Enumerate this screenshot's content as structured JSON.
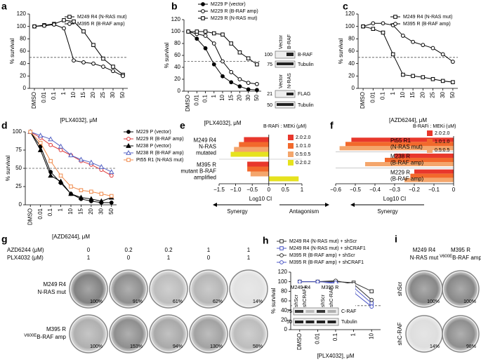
{
  "chart_data": [
    {
      "type": "line",
      "label": "a",
      "categories": [
        "DMSO",
        "0.01",
        "0.1",
        "1",
        "10",
        "15",
        "20",
        "25",
        "30",
        "50"
      ],
      "series": [
        {
          "name": "M249 R4 (N-RAS mut)",
          "color": "#000000",
          "marker": "square",
          "filled": false,
          "values": [
            100,
            102,
            104,
            110,
            108,
            92,
            70,
            48,
            35,
            22
          ]
        },
        {
          "name": "M395 R (B-RAF amp)",
          "color": "#000000",
          "marker": "circle",
          "filled": false,
          "values": [
            100,
            101,
            103,
            97,
            45,
            42,
            40,
            35,
            28,
            20
          ]
        }
      ],
      "ylim": [
        0,
        120
      ],
      "yticks": [
        0,
        20,
        40,
        60,
        80,
        100,
        120
      ],
      "ylabel": "% survival",
      "xlabel": "[PLX4032], μM",
      "reference_line": 50
    },
    {
      "type": "line",
      "label": "b",
      "categories": [
        "DMSO",
        "0.01",
        "0.1",
        "1",
        "10",
        "15",
        "20",
        "30",
        "50"
      ],
      "series": [
        {
          "name": "M229 P (vector)",
          "color": "#000000",
          "marker": "circle",
          "filled": true,
          "values": [
            100,
            88,
            72,
            45,
            25,
            15,
            8,
            3,
            2
          ]
        },
        {
          "name": "M229 R (B-RAF amp)",
          "color": "#000000",
          "marker": "circle",
          "filled": false,
          "values": [
            100,
            96,
            93,
            80,
            50,
            32,
            20,
            14,
            12
          ]
        },
        {
          "name": "M229 R (N-RAS mut)",
          "color": "#000000",
          "marker": "square",
          "filled": false,
          "values": [
            100,
            100,
            100,
            97,
            95,
            80,
            65,
            55,
            45
          ]
        }
      ],
      "ylim": [
        0,
        120
      ],
      "yticks": [
        0,
        20,
        40,
        60,
        80,
        100,
        120
      ],
      "ylabel": "% survival",
      "xlabel": "[PLX4032], μM",
      "reference_line": 50,
      "blots": [
        {
          "lanes": [
            "Vector",
            "B-RAF"
          ],
          "ladder": [
            100,
            75
          ],
          "bands": [
            "B-RAF",
            "Tubulin"
          ]
        },
        {
          "lanes": [
            "Vector",
            "N-RAS"
          ],
          "ladder": [
            21,
            50
          ],
          "bands": [
            "FLAG",
            "Tubulin"
          ]
        }
      ]
    },
    {
      "type": "line",
      "label": "c",
      "categories": [
        "DMSO",
        "0.01",
        "0.1",
        "1",
        "10",
        "15",
        "20",
        "25",
        "30",
        "50"
      ],
      "series": [
        {
          "name": "M249 R4 (N-RAS mut)",
          "color": "#000000",
          "marker": "square",
          "filled": false,
          "values": [
            100,
            96,
            90,
            55,
            22,
            20,
            18,
            15,
            12,
            10
          ]
        },
        {
          "name": "M395 R (B-RAF amp)",
          "color": "#000000",
          "marker": "circle",
          "filled": false,
          "values": [
            100,
            105,
            105,
            102,
            85,
            75,
            70,
            65,
            55,
            43
          ]
        }
      ],
      "ylim": [
        0,
        120
      ],
      "yticks": [
        0,
        20,
        40,
        60,
        80,
        100,
        120
      ],
      "ylabel": "% survival",
      "xlabel": "[AZD6244], μM",
      "reference_line": 50
    },
    {
      "type": "line",
      "label": "d",
      "categories": [
        "DMSO",
        "0.01",
        "0.1",
        "1",
        "10",
        "15",
        "20",
        "30",
        "50"
      ],
      "series": [
        {
          "name": "M229 P (vector)",
          "color": "#000000",
          "marker": "circle",
          "filled": true,
          "values": [
            100,
            80,
            45,
            30,
            15,
            8,
            5,
            3,
            3
          ]
        },
        {
          "name": "M229 R (B-RAF amp)",
          "color": "#e03a3a",
          "marker": "circle",
          "filled": false,
          "values": [
            100,
            92,
            82,
            75,
            68,
            60,
            55,
            48,
            40
          ]
        },
        {
          "name": "M238 P (vector)",
          "color": "#000000",
          "marker": "triangle",
          "filled": true,
          "values": [
            100,
            75,
            40,
            32,
            15,
            10,
            8,
            5,
            10
          ]
        },
        {
          "name": "M238 R (B-RAF amp)",
          "color": "#5563c4",
          "marker": "triangle",
          "filled": false,
          "values": [
            100,
            95,
            90,
            80,
            68,
            62,
            58,
            52,
            45
          ]
        },
        {
          "name": "Pt55 R1 (N-RAS mut)",
          "color": "#f08a4b",
          "marker": "square",
          "filled": false,
          "values": [
            100,
            85,
            60,
            40,
            25,
            20,
            18,
            15,
            12
          ]
        }
      ],
      "ylim": [
        0,
        100
      ],
      "yticks": [
        0,
        25,
        50,
        75,
        100
      ],
      "ylabel": "% survival",
      "xlabel": "[AZD6244], μM",
      "reference_line": 50
    },
    {
      "type": "hbar",
      "label": "e",
      "categories": [
        [
          "M249 R4",
          "N-RAS",
          "mutated"
        ],
        [
          "M395 R",
          "mutant B-RAF",
          "amplified"
        ]
      ],
      "legend_title": "B-RAFi : MEKi (μM)",
      "series": [
        {
          "name": "2.0:2.0",
          "color": "#e8372c",
          "values": [
            -0.75,
            -0.65
          ]
        },
        {
          "name": "1.0:1.0",
          "color": "#f2692c",
          "values": [
            -0.9,
            -0.65
          ]
        },
        {
          "name": "0.5:0.5",
          "color": "#f4a66c",
          "values": [
            -1.05,
            -0.55
          ]
        },
        {
          "name": "0.2:0.2",
          "color": "#e6e21e",
          "values": [
            -1.15,
            0.9
          ]
        }
      ],
      "xlim": [
        -1.5,
        1
      ],
      "xticks": [
        {
          "value": -1.5,
          "label": "−1.5"
        },
        {
          "value": -1,
          "label": "−1.0"
        },
        {
          "value": -0.5,
          "label": "−0.5"
        },
        0,
        0.5,
        1
      ],
      "xlabel": "Log10 CI",
      "direction_labels": [
        "Synergy",
        "Antagonism"
      ]
    },
    {
      "type": "hbar",
      "label": "f",
      "categories": [
        [
          "Pt55 R1",
          "(N-RAS mut)"
        ],
        [
          "M238 R",
          "(B-RAF amp)"
        ],
        [
          "M229 R",
          "(B-RAF amp)"
        ]
      ],
      "legend_title": "B-RAFi : MEKi (uM)",
      "series": [
        {
          "name": "2.0:2.0",
          "color": "#e8372c",
          "values": [
            -0.52,
            -0.3,
            -0.2
          ]
        },
        {
          "name": "1.0:1.0",
          "color": "#f2692c",
          "values": [
            -0.55,
            -0.35,
            -0.22
          ]
        },
        {
          "name": "0.5:0.5",
          "color": "#f4a66c",
          "values": [
            -0.58,
            -0.45,
            -0.25
          ]
        }
      ],
      "xlim": [
        -0.6,
        0
      ],
      "xticks": [
        {
          "value": -0.6,
          "label": "−0.6"
        },
        {
          "value": -0.5,
          "label": "−0.5"
        },
        {
          "value": -0.4,
          "label": "−0.4"
        },
        {
          "value": -0.3,
          "label": "−0.3"
        },
        {
          "value": -0.2,
          "label": "−0.2"
        },
        {
          "value": -0.1,
          "label": "−0.1"
        },
        0
      ],
      "xlabel": "Log10 CI",
      "direction_labels": [
        "Synergy"
      ]
    },
    {
      "type": "line",
      "label": "h",
      "categories": [
        "DMSO",
        "0.01",
        "0.1",
        "1",
        "10"
      ],
      "series": [
        {
          "name": "M249 R4 (N-RAS mut) + shScr",
          "color": "#333333",
          "marker": "square",
          "filled": false,
          "values": [
            100,
            100,
            100,
            98,
            80
          ]
        },
        {
          "name": "M249 R4 (N-RAS mut) + shCRAF1",
          "color": "#4a55c4",
          "marker": "square",
          "filled": false,
          "values": [
            95,
            95,
            98,
            88,
            55
          ]
        },
        {
          "name": "M395 R (B-RAF amp) + shScr",
          "color": "#333333",
          "marker": "circle",
          "filled": false,
          "values": [
            100,
            100,
            102,
            95,
            62
          ]
        },
        {
          "name": "M395 R (B-RAF amp) + shCRAF1",
          "color": "#4a55c4",
          "marker": "circle",
          "filled": false,
          "values": [
            100,
            100,
            98,
            78,
            48
          ]
        }
      ],
      "ylim": [
        0,
        120
      ],
      "yticks": [
        0,
        20,
        40,
        60,
        80,
        100,
        120
      ],
      "ylabel": "% survival",
      "xlabel": "[PLX4032], μM",
      "reference_line": 50,
      "blots": [
        {
          "cell_lines": [
            "M249 R4",
            "M395 R"
          ],
          "lanes": [
            "shScr",
            "shCRAF1",
            "shScr",
            "shC-RAF"
          ],
          "ladder": [
            75,
            50
          ],
          "bands": [
            "C-RAF",
            "Tubulin"
          ]
        }
      ]
    }
  ],
  "panel_g": {
    "label": "g",
    "row_headers": [
      "AZD6244 (μM)",
      "PLX4032 (μM)"
    ],
    "azd6244": [
      0,
      0.2,
      0.2,
      1,
      1
    ],
    "plx4032": [
      1,
      0,
      1,
      0,
      1
    ],
    "cell_lines": [
      {
        "name": "M249 R4",
        "detail": "N-RAS mut",
        "survival": [
          "100%",
          "91%",
          "61%",
          "62%",
          "14%"
        ]
      },
      {
        "name": "M395 R",
        "superscript": "V600E",
        "detail": "B-RAF amp",
        "survival": [
          "100%",
          "153%",
          "94%",
          "130%",
          "58%"
        ]
      }
    ]
  },
  "panel_i": {
    "label": "i",
    "columns": [
      {
        "name": "M249 R4",
        "detail": "N-RAS mut"
      },
      {
        "name": "M395 R",
        "superscript": "V600E",
        "detail": "B-RAF amp"
      }
    ],
    "rows": [
      {
        "name": "shScr",
        "survival": [
          "100%",
          "100%"
        ]
      },
      {
        "name": "shC-RAF",
        "survival": [
          "14%",
          "98%"
        ]
      }
    ]
  }
}
